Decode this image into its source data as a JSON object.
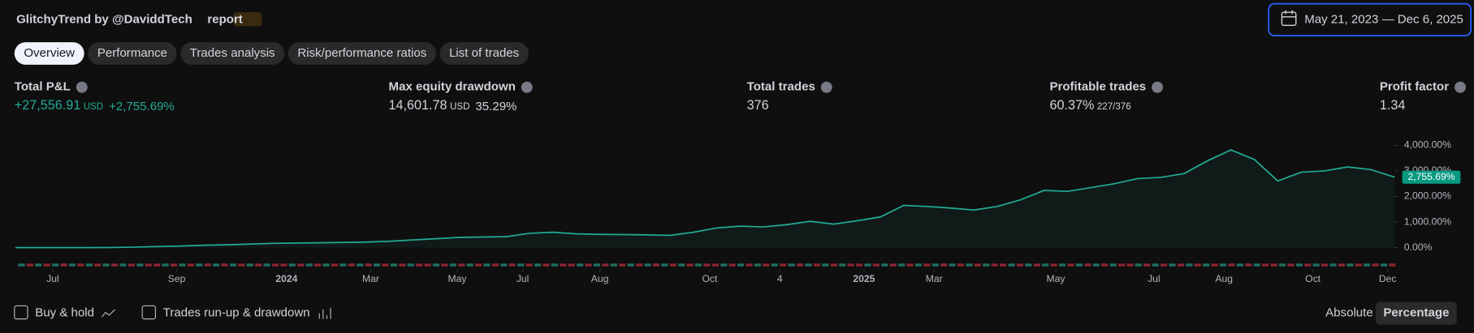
{
  "header": {
    "title": "GlitchyTrend by @DaviddTech",
    "report": "report",
    "date_range": "May 21, 2023 — Dec 6, 2025"
  },
  "tabs": [
    "Overview",
    "Performance",
    "Trades analysis",
    "Risk/performance ratios",
    "List of trades"
  ],
  "metrics": {
    "total_pnl": {
      "label": "Total P&L",
      "value": "+27,556.91",
      "unit": "USD",
      "extra": "+2,755.69%"
    },
    "max_drawdown": {
      "label": "Max equity drawdown",
      "value": "14,601.78",
      "unit": "USD",
      "extra": "35.29%"
    },
    "total_trades": {
      "label": "Total trades",
      "value": "376"
    },
    "profitable_trades": {
      "label": "Profitable trades",
      "value": "60.37%",
      "extra": "227/376"
    },
    "profit_factor": {
      "label": "Profit factor",
      "value": "1.34"
    }
  },
  "chart_data": {
    "type": "area",
    "color": "#22ab94",
    "values": [
      0,
      0,
      0,
      0,
      5,
      20,
      40,
      60,
      90,
      110,
      140,
      170,
      180,
      190,
      200,
      220,
      250,
      300,
      350,
      400,
      420,
      430,
      560,
      600,
      540,
      520,
      510,
      500,
      480,
      600,
      770,
      840,
      810,
      900,
      1030,
      920,
      1050,
      1200,
      1650,
      1610,
      1550,
      1470,
      1610,
      1870,
      2240,
      2200,
      2350,
      2500,
      2700,
      2750,
      2900,
      3400,
      3820,
      3450,
      2610,
      2950,
      3000,
      3160,
      3050,
      2755.69
    ],
    "value_labels": {
      "59": "2,755.69%"
    },
    "xlim": [
      0,
      59
    ],
    "xticks": [
      {
        "value": 1.6,
        "label": "Jul"
      },
      {
        "value": 6.9,
        "label": "Sep"
      },
      {
        "value": 11.6,
        "label": "2024"
      },
      {
        "value": 15.2,
        "label": "Mar"
      },
      {
        "value": 18.9,
        "label": "May"
      },
      {
        "value": 21.7,
        "label": "Jul"
      },
      {
        "value": 25.0,
        "label": "Aug"
      },
      {
        "value": 29.7,
        "label": "Oct"
      },
      {
        "value": 32.7,
        "label": "4"
      },
      {
        "value": 36.3,
        "label": "2025"
      },
      {
        "value": 39.3,
        "label": "Mar"
      },
      {
        "value": 44.5,
        "label": "May"
      },
      {
        "value": 48.7,
        "label": "Jul"
      },
      {
        "value": 51.7,
        "label": "Aug"
      },
      {
        "value": 55.5,
        "label": "Oct"
      },
      {
        "value": 58.7,
        "label": "Dec"
      }
    ],
    "ylim": [
      0,
      4550
    ],
    "yticks": [
      {
        "value": 0,
        "label": "0.00%"
      },
      {
        "value": 1000,
        "label": "1,000.00%"
      },
      {
        "value": 2000,
        "label": "2,000.00%"
      },
      {
        "value": 3000,
        "label": "3,000.00%"
      },
      {
        "value": 4000,
        "label": "4,000.00%"
      }
    ]
  },
  "footer": {
    "buy_hold": "Buy & hold",
    "runup": "Trades run-up & drawdown",
    "absolute": "Absolute",
    "percentage": "Percentage"
  }
}
